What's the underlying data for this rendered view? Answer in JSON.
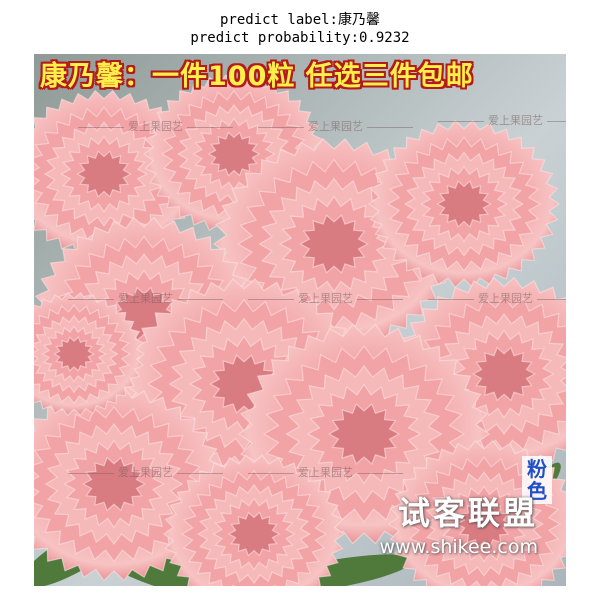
{
  "caption": {
    "label_line": "predict label:康乃馨",
    "probability_line": "predict probability:0.9232"
  },
  "image": {
    "subject": "pink carnation flowers",
    "banner_text": "康乃馨：一件100粒 任选三件包邮",
    "watermark_text": "爱上果园艺",
    "color_tag": "粉色",
    "logo_text": "试客联盟",
    "site_text": "www.shikee.com",
    "colors": {
      "banner_fill": "#ffef4a",
      "banner_outline": "#b31a1a",
      "petal_pink": "#f2a3a6",
      "petal_dark": "#d97c82",
      "leaf_green": "#4f7a3c",
      "background_sky": "#b9c4c9",
      "color_tag_blue": "#2050c8"
    }
  }
}
